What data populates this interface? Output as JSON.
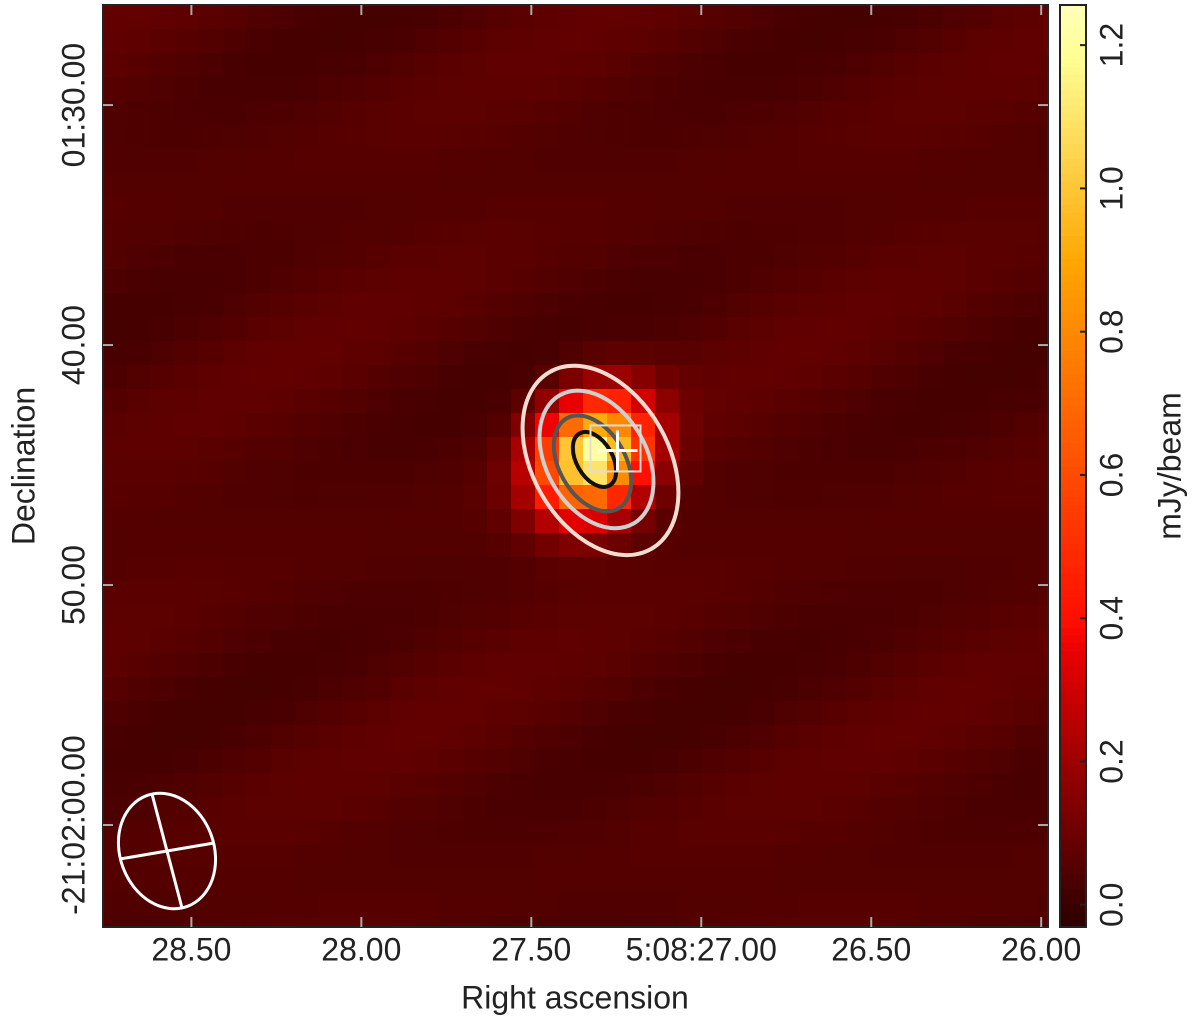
{
  "chart_data": {
    "type": "image",
    "x_label": "Right ascension",
    "y_label": "Declination",
    "colorbar_label": "mJy/beam",
    "xlim": [
      28.76,
      25.98
    ],
    "xticks": [
      {
        "value": 28.5,
        "label": "28.50"
      },
      {
        "value": 28,
        "label": "28.00"
      },
      {
        "value": 27.5,
        "label": "27.50"
      },
      {
        "value": 27,
        "label": "5:08:27.00"
      },
      {
        "value": 26.5,
        "label": "26.50"
      },
      {
        "value": 26,
        "label": "26.00"
      }
    ],
    "ylim": [
      64.25,
      25.83
    ],
    "yticks": [
      {
        "value": 30,
        "label": "01:30.00"
      },
      {
        "value": 40,
        "label": "40.00"
      },
      {
        "value": 50,
        "label": "50.00"
      },
      {
        "value": 60,
        "label": "-21:02:00.00"
      }
    ],
    "clim": [
      -0.031,
      1.256
    ],
    "cticks": [
      {
        "value": 0,
        "label": "0.0"
      },
      0.2,
      0.4,
      0.6,
      0.8,
      {
        "value": 1,
        "label": "1.0"
      },
      1.2
    ],
    "background_level": 0.05,
    "source": {
      "ra": 27.32,
      "dec": 44.6,
      "peak": 1.2
    }
  }
}
